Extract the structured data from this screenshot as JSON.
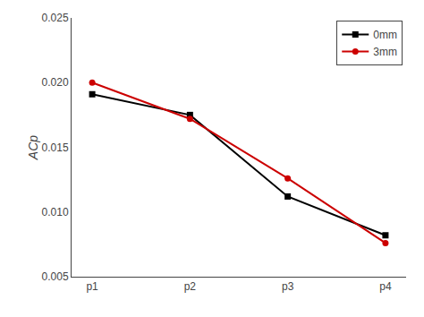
{
  "chart_data": {
    "type": "line",
    "categories": [
      "p1",
      "p2",
      "p3",
      "p4"
    ],
    "series": [
      {
        "name": "0mm",
        "color": "#000000",
        "marker": "square",
        "values": [
          0.0191,
          0.0175,
          0.0112,
          0.0082
        ]
      },
      {
        "name": "3mm",
        "color": "#cc0000",
        "marker": "circle",
        "values": [
          0.02,
          0.0172,
          0.0126,
          0.0076
        ]
      }
    ],
    "ylabel": "ACp",
    "ylim": [
      0.005,
      0.025
    ],
    "yticks": [
      0.005,
      {
        "value": 0.01,
        "label": "0.010"
      },
      0.015,
      {
        "value": 0.02,
        "label": "0.020"
      },
      0.025
    ],
    "legend": "upper right",
    "grid": false
  }
}
